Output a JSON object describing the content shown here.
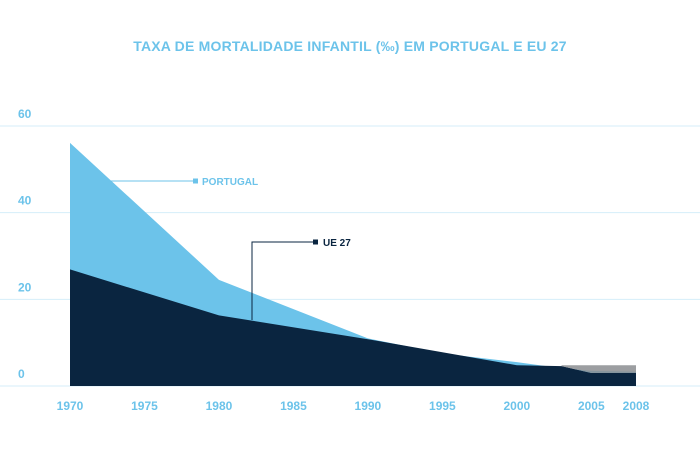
{
  "chart_data": {
    "type": "area",
    "title": "TAXA DE MORTALIDADE INFANTIL (‰) EM PORTUGAL E EU 27",
    "xlabel": "",
    "ylabel": "",
    "x": [
      1970,
      1975,
      1980,
      1985,
      1990,
      1995,
      2000,
      2005,
      2008
    ],
    "x_ticks": [
      "1970",
      "1975",
      "1980",
      "1985",
      "1990",
      "1995",
      "2000",
      "2005",
      "2008"
    ],
    "y_ticks": [
      "0",
      "20",
      "40",
      "60"
    ],
    "ylim": [
      0,
      60
    ],
    "xlim": [
      1970,
      2008
    ],
    "grid": true,
    "series": [
      {
        "name": "PORTUGAL",
        "color": "#6cc3ea",
        "points": [
          [
            1970,
            56.1
          ],
          [
            1980,
            24.5
          ],
          [
            1990,
            11.0
          ],
          [
            1995,
            7.5
          ],
          [
            2000,
            5.5
          ],
          [
            2003,
            4.1
          ],
          [
            2005,
            3.5
          ],
          [
            2008,
            3.3
          ]
        ]
      },
      {
        "name": "UE 27",
        "color": "#0a2540",
        "points": [
          [
            1970,
            26.9
          ],
          [
            1980,
            16.3
          ],
          [
            1990,
            10.8
          ],
          [
            1995,
            7.8
          ],
          [
            2000,
            4.8
          ],
          [
            2003,
            4.6
          ],
          [
            2005,
            3.0
          ],
          [
            2008,
            3.0
          ]
        ]
      }
    ],
    "overlay_band": {
      "from": 2003,
      "to": 2008,
      "upper": 4.8,
      "color": "#8b8d91"
    }
  }
}
